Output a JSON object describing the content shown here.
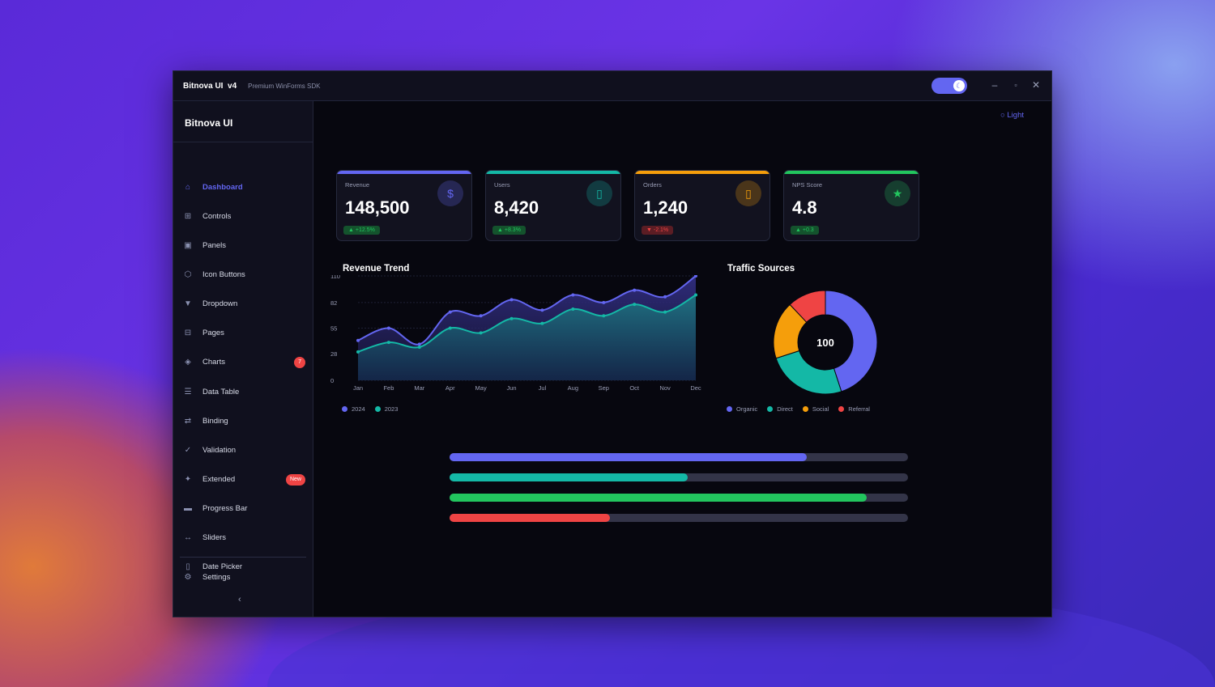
{
  "titlebar": {
    "title": "Bitnova UI  v4",
    "subtitle": "Premium WinForms SDK",
    "theme_toggle_icon": "moon-icon"
  },
  "sidebar": {
    "brand": "Bitnova UI",
    "items": [
      {
        "label": "Dashboard",
        "icon": "⌂",
        "active": true
      },
      {
        "label": "Controls",
        "icon": "⊞"
      },
      {
        "label": "Panels",
        "icon": "▣"
      },
      {
        "label": "Icon Buttons",
        "icon": "⬡"
      },
      {
        "label": "Dropdown",
        "icon": "▼"
      },
      {
        "label": "Pages",
        "icon": "⊟"
      },
      {
        "label": "Charts",
        "icon": "◈",
        "badge": "7"
      },
      {
        "label": "Data Table",
        "icon": "☰"
      },
      {
        "label": "Binding",
        "icon": "⇄"
      },
      {
        "label": "Validation",
        "icon": "✓"
      },
      {
        "label": "Extended",
        "icon": "✦",
        "badge": "New"
      },
      {
        "label": "Progress Bar",
        "icon": "▬"
      },
      {
        "label": "Sliders",
        "icon": "↔"
      },
      {
        "label": "Date Picker",
        "icon": "▯"
      }
    ],
    "settings": {
      "label": "Settings",
      "icon": "⚙"
    },
    "collapse": "‹"
  },
  "main": {
    "theme_link": "○ Light",
    "cards": [
      {
        "label": "Revenue",
        "value": "148,500",
        "delta": "▲ +12.5%",
        "icon": "$",
        "accent": "#6366f1",
        "trend": "up"
      },
      {
        "label": "Users",
        "value": "8,420",
        "delta": "▲ +8.3%",
        "icon": "▯",
        "accent": "#14b8a6",
        "trend": "up"
      },
      {
        "label": "Orders",
        "value": "1,240",
        "delta": "▼ -2.1%",
        "icon": "▯",
        "accent": "#f59e0b",
        "trend": "down"
      },
      {
        "label": "NPS Score",
        "value": "4.8",
        "delta": "▲ +0.3",
        "icon": "★",
        "accent": "#22c55e",
        "trend": "up"
      }
    ],
    "progress": [
      {
        "value": 78,
        "color": "#6366f1"
      },
      {
        "value": 52,
        "color": "#14b8a6"
      },
      {
        "value": 91,
        "color": "#22c55e"
      },
      {
        "value": 35,
        "color": "#ef4444"
      }
    ]
  },
  "chart_data": [
    {
      "type": "area",
      "title": "Revenue Trend",
      "categories": [
        "Jan",
        "Feb",
        "Mar",
        "Apr",
        "May",
        "Jun",
        "Jul",
        "Aug",
        "Sep",
        "Oct",
        "Nov",
        "Dec"
      ],
      "series": [
        {
          "name": "2024",
          "color": "#6366f1",
          "values": [
            42,
            55,
            38,
            72,
            68,
            85,
            74,
            90,
            82,
            95,
            88,
            110
          ]
        },
        {
          "name": "2023",
          "color": "#14b8a6",
          "values": [
            30,
            40,
            35,
            55,
            50,
            65,
            60,
            75,
            68,
            80,
            72,
            90
          ]
        }
      ],
      "yticks": [
        "0",
        "28",
        "55",
        "82",
        "110"
      ],
      "ylim": [
        0,
        110
      ],
      "grid": true,
      "legend": "bottom-left"
    },
    {
      "type": "pie",
      "title": "Traffic Sources",
      "center_label": "100",
      "categories": [
        "Organic",
        "Direct",
        "Social",
        "Referral"
      ],
      "values": [
        45,
        25,
        18,
        12
      ],
      "colors": [
        "#6366f1",
        "#14b8a6",
        "#f59e0b",
        "#ef4444"
      ],
      "legend": "bottom"
    }
  ]
}
